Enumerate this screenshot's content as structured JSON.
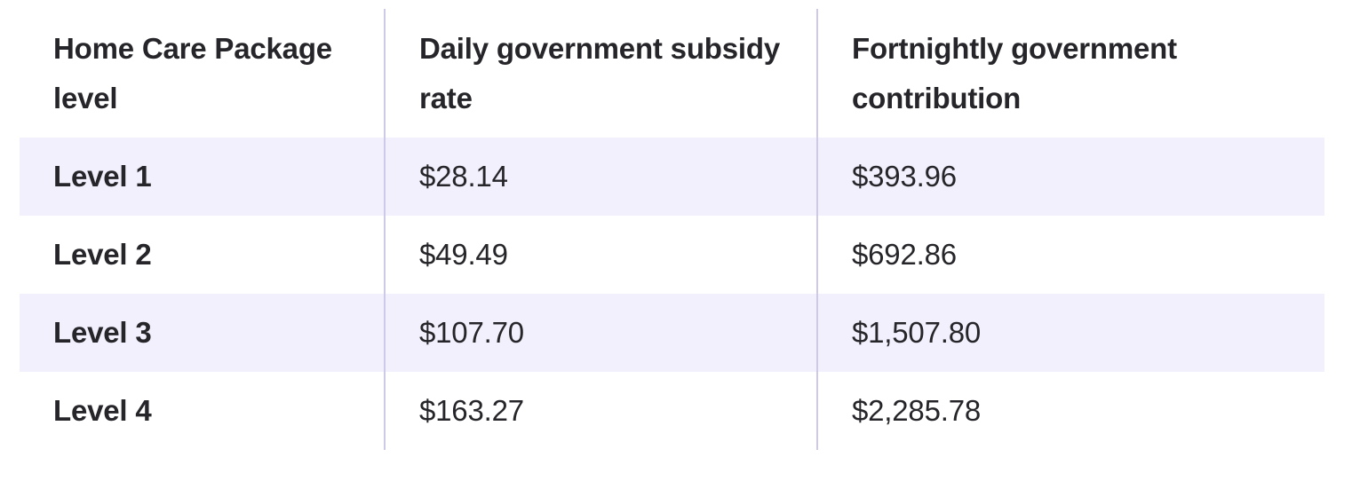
{
  "table": {
    "columns": [
      {
        "label": "Home Care Package level",
        "lines": [
          "Home Care Package",
          "level"
        ]
      },
      {
        "label": "Daily government subsidy rate",
        "lines": [
          "Daily government subsidy",
          "rate"
        ]
      },
      {
        "label": "Fortnightly government contribution",
        "lines": [
          "Fortnightly government",
          "contribution"
        ]
      }
    ],
    "rows": [
      {
        "level": "Level 1",
        "daily_rate": "$28.14",
        "fortnightly_contribution": "$393.96",
        "shaded": true
      },
      {
        "level": "Level 2",
        "daily_rate": "$49.49",
        "fortnightly_contribution": "$692.86",
        "shaded": false
      },
      {
        "level": "Level 3",
        "daily_rate": "$107.70",
        "fortnightly_contribution": "$1,507.80",
        "shaded": true
      },
      {
        "level": "Level 4",
        "daily_rate": "$163.27",
        "fortnightly_contribution": "$2,285.78",
        "shaded": false
      }
    ],
    "colors": {
      "row_shade": "#f2f0fc",
      "divider": "#cdc9e8",
      "text": "#26262a",
      "background": "#ffffff"
    }
  }
}
